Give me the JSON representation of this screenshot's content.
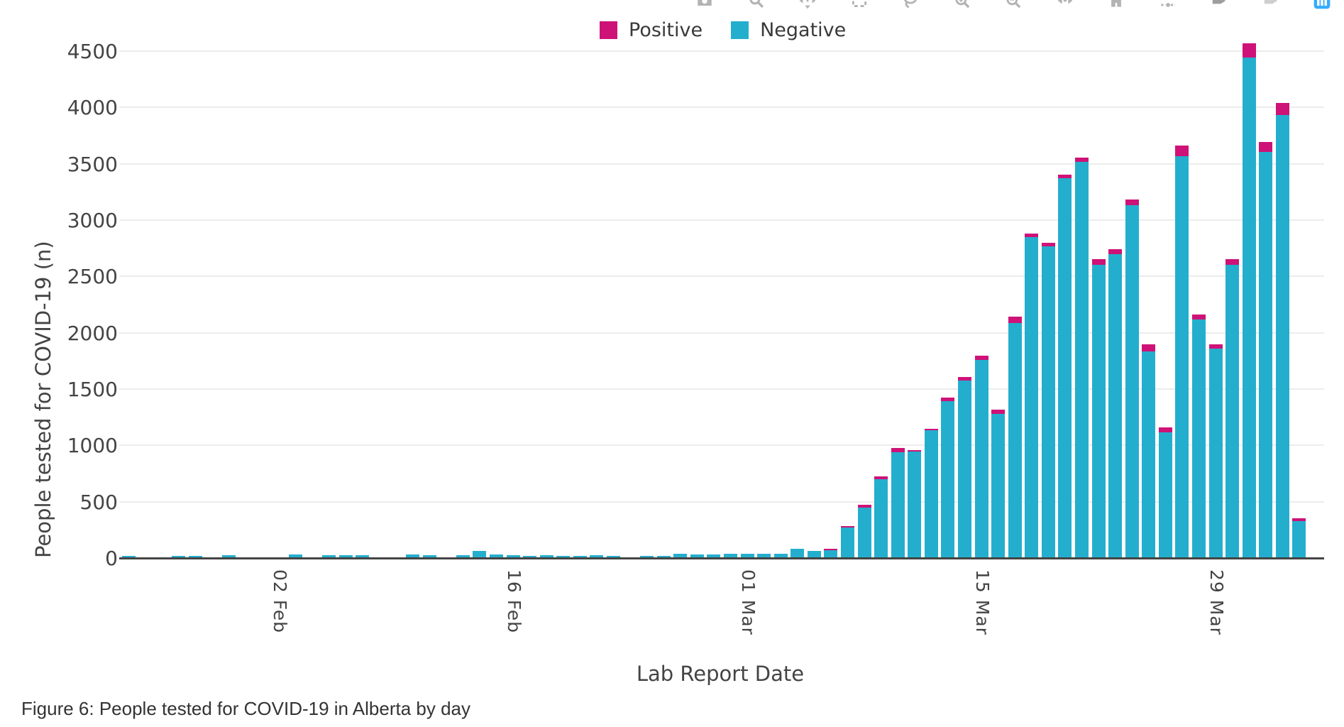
{
  "page": {
    "background": "#ffffff"
  },
  "caption": "Figure 6: People tested for COVID-19 in Alberta by day",
  "toolbar": {
    "icon_color": "#a6a6a6",
    "logo_color": "#119dff",
    "icons": [
      "camera",
      "zoom",
      "pan",
      "box-select",
      "lasso",
      "zoom-in",
      "zoom-out",
      "autoscale",
      "reset-axes",
      "toggle-spikelines",
      "hover-closest",
      "hover-compare",
      "plotly-logo"
    ]
  },
  "chart_data": {
    "type": "bar",
    "stacked": true,
    "title": "",
    "xlabel": "Lab Report Date",
    "ylabel": "People tested for COVID-19 (n)",
    "ylim": [
      0,
      4695
    ],
    "yticks": [
      0,
      500,
      1000,
      1500,
      2000,
      2500,
      3000,
      3500,
      4000,
      4500
    ],
    "grid": true,
    "legend_position": "top-center",
    "axis_color": "#444444",
    "gridline_color": "#ececec",
    "categories": [
      "24 Jan",
      "25 Jan",
      "26 Jan",
      "27 Jan",
      "28 Jan",
      "29 Jan",
      "30 Jan",
      "31 Jan",
      "01 Feb",
      "02 Feb",
      "03 Feb",
      "04 Feb",
      "05 Feb",
      "06 Feb",
      "07 Feb",
      "08 Feb",
      "09 Feb",
      "10 Feb",
      "11 Feb",
      "12 Feb",
      "13 Feb",
      "14 Feb",
      "15 Feb",
      "16 Feb",
      "17 Feb",
      "18 Feb",
      "19 Feb",
      "20 Feb",
      "21 Feb",
      "22 Feb",
      "23 Feb",
      "24 Feb",
      "25 Feb",
      "26 Feb",
      "27 Feb",
      "28 Feb",
      "29 Feb",
      "01 Mar",
      "02 Mar",
      "03 Mar",
      "04 Mar",
      "05 Mar",
      "06 Mar",
      "07 Mar",
      "08 Mar",
      "09 Mar",
      "10 Mar",
      "11 Mar",
      "12 Mar",
      "13 Mar",
      "14 Mar",
      "15 Mar",
      "16 Mar",
      "17 Mar",
      "18 Mar",
      "19 Mar",
      "20 Mar",
      "21 Mar",
      "22 Mar",
      "23 Mar",
      "24 Mar",
      "25 Mar",
      "26 Mar",
      "27 Mar",
      "28 Mar",
      "29 Mar",
      "30 Mar",
      "31 Mar",
      "01 Apr",
      "02 Apr",
      "03 Apr"
    ],
    "xticks": [
      {
        "label": "02 Feb",
        "index": 9
      },
      {
        "label": "16 Feb",
        "index": 23
      },
      {
        "label": "01 Mar",
        "index": 37
      },
      {
        "label": "15 Mar",
        "index": 51
      },
      {
        "label": "29 Mar",
        "index": 65
      }
    ],
    "series": [
      {
        "name": "Positive",
        "color": "#ce1277",
        "values": [
          0,
          0,
          0,
          0,
          0,
          0,
          0,
          0,
          0,
          0,
          0,
          0,
          0,
          0,
          0,
          0,
          0,
          0,
          0,
          0,
          0,
          0,
          0,
          0,
          0,
          0,
          0,
          0,
          0,
          0,
          0,
          0,
          0,
          0,
          0,
          0,
          0,
          0,
          0,
          0,
          0,
          0,
          13,
          16,
          20,
          26,
          37,
          15,
          14,
          31,
          32,
          39,
          38,
          55,
          31,
          30,
          31,
          41,
          47,
          45,
          51,
          62,
          47,
          92,
          44,
          33,
          52,
          128,
          91,
          106,
          25
        ]
      },
      {
        "name": "Negative",
        "color": "#24aece",
        "values": [
          20,
          0,
          0,
          20,
          20,
          0,
          25,
          0,
          0,
          0,
          30,
          0,
          25,
          25,
          25,
          0,
          0,
          30,
          25,
          0,
          25,
          65,
          30,
          25,
          20,
          25,
          20,
          20,
          25,
          20,
          0,
          20,
          20,
          35,
          30,
          30,
          40,
          35,
          35,
          40,
          85,
          60,
          67,
          269,
          450,
          699,
          938,
          945,
          1136,
          1394,
          1573,
          1756,
          1282,
          2085,
          2849,
          2765,
          3374,
          3514,
          2603,
          2695,
          3129,
          1833,
          1113,
          3568,
          2116,
          1862,
          2603,
          4442,
          3604,
          3934,
          330
        ]
      }
    ]
  }
}
